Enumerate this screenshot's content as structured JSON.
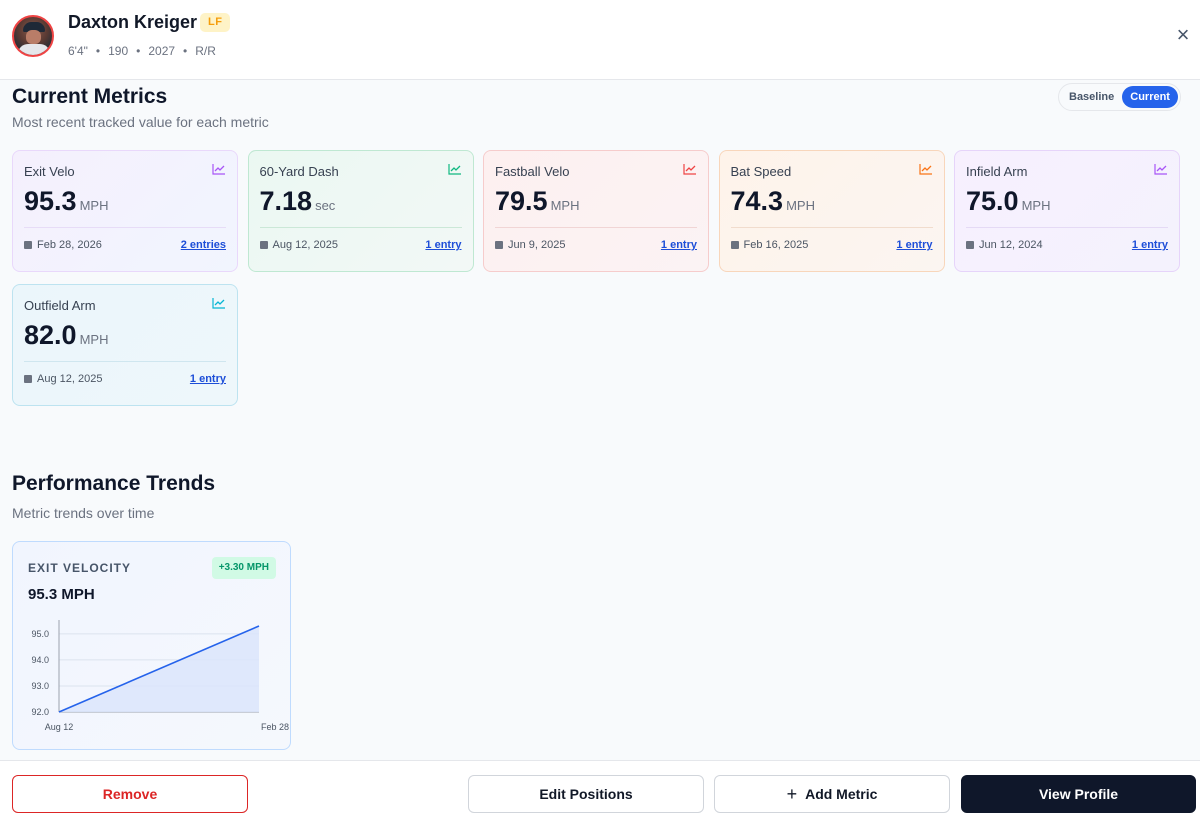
{
  "player": {
    "name": "Daxton Kreiger",
    "position": "LF",
    "height": "6'4\"",
    "weight": "190",
    "grad_year": "2027",
    "bats_throws": "R/R",
    "separator": "•"
  },
  "close_icon": "×",
  "current_metrics": {
    "title": "Current Metrics",
    "subtitle": "Most recent tracked value for each metric",
    "toggle": {
      "baseline": "Baseline",
      "current": "Current",
      "active": "current"
    },
    "cards": [
      {
        "label": "Exit Velo",
        "value": "95.3",
        "unit": "MPH",
        "date": "Feb 28, 2026",
        "entries": "2 entries",
        "color": "#a855f7",
        "icon": "trend-icon"
      },
      {
        "label": "60-Yard Dash",
        "value": "7.18",
        "unit": "sec",
        "date": "Aug 12, 2025",
        "entries": "1 entry",
        "color": "#10b981",
        "icon": "trend-icon"
      },
      {
        "label": "Fastball Velo",
        "value": "79.5",
        "unit": "MPH",
        "date": "Jun 9, 2025",
        "entries": "1 entry",
        "color": "#ef4444",
        "icon": "trend-icon"
      },
      {
        "label": "Bat Speed",
        "value": "74.3",
        "unit": "MPH",
        "date": "Feb 16, 2025",
        "entries": "1 entry",
        "color": "#f97316",
        "icon": "trend-icon"
      },
      {
        "label": "Infield Arm",
        "value": "75.0",
        "unit": "MPH",
        "date": "Jun 12, 2024",
        "entries": "1 entry",
        "color": "#a855f7",
        "icon": "trend-icon"
      },
      {
        "label": "Outfield Arm",
        "value": "82.0",
        "unit": "MPH",
        "date": "Aug 12, 2025",
        "entries": "1 entry",
        "color": "#06b6d4",
        "icon": "trend-icon"
      }
    ]
  },
  "performance_trends": {
    "title": "Performance Trends",
    "subtitle": "Metric trends over time",
    "chart": {
      "label": "EXIT VELOCITY",
      "delta": "+3.30 MPH",
      "current": "95.3 MPH"
    }
  },
  "chart_data": {
    "type": "area",
    "title": "EXIT VELOCITY",
    "x": [
      "Aug 12",
      "Feb 28"
    ],
    "values": [
      92.0,
      95.3
    ],
    "ylim": [
      92.0,
      95.3
    ],
    "yticks": [
      "95.0",
      "94.0",
      "93.0",
      "92.0"
    ],
    "ytick_values": [
      95.0,
      94.0,
      93.0,
      92.0
    ],
    "xlabel": "",
    "ylabel": "",
    "grid": true,
    "line_color": "#2563eb",
    "fill_color": "#dbe5fb"
  },
  "footer": {
    "remove": "Remove",
    "edit_positions": "Edit Positions",
    "add_metric": "Add Metric",
    "add_icon": "+",
    "view_profile": "View Profile"
  }
}
